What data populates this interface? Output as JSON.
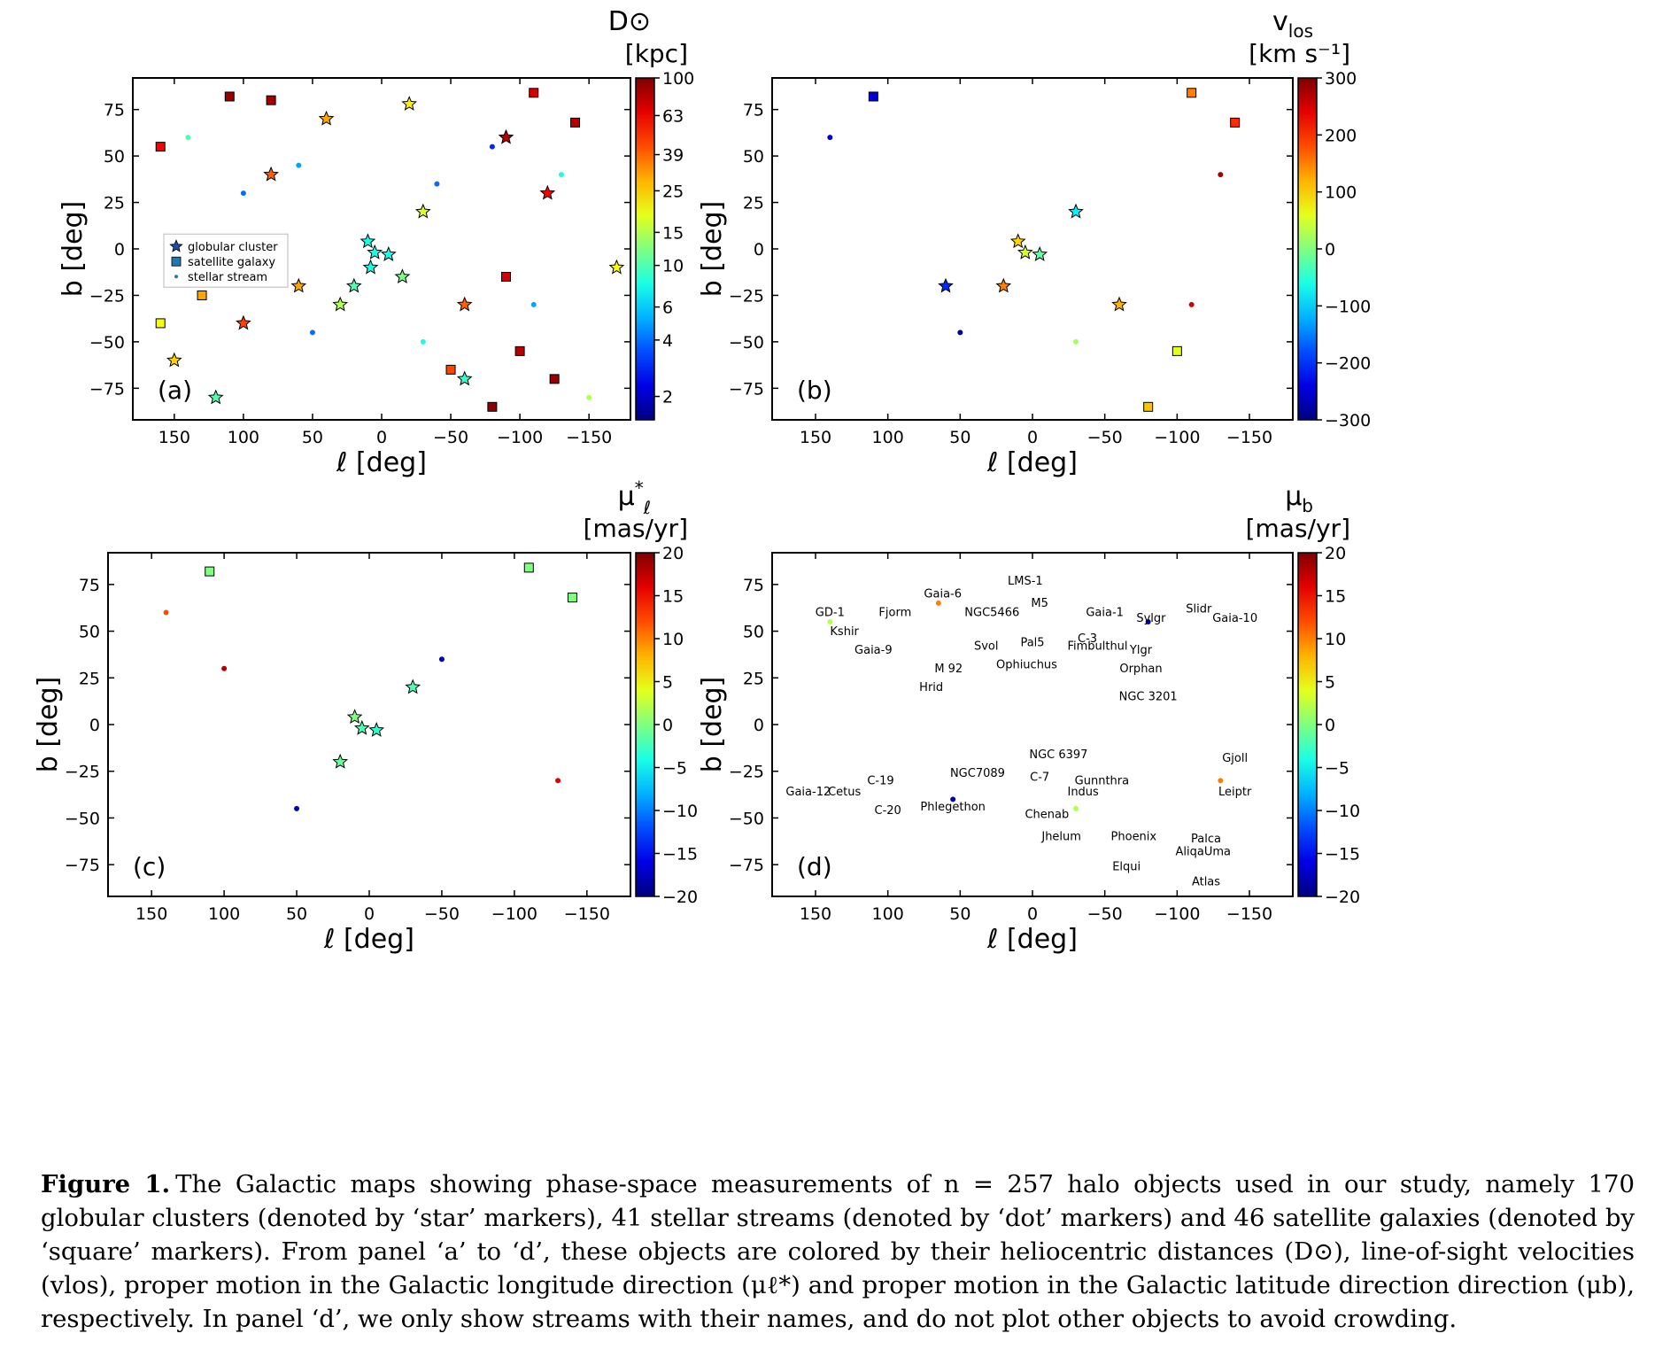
{
  "chart_data": [
    {
      "type": "scatter",
      "panel_label": "(a)",
      "xlabel": "ℓ [deg]",
      "ylabel": "b [deg]",
      "xlim": [
        180,
        -180
      ],
      "ylim": [
        -92,
        92
      ],
      "xticks": [
        150,
        100,
        50,
        0,
        -50,
        -100,
        -150
      ],
      "yticks": [
        75,
        50,
        25,
        0,
        -25,
        -50,
        -75
      ],
      "colorbar": {
        "title_main": "D⊙",
        "title_unit": "[kpc]",
        "scale": "log",
        "range": [
          1.5,
          100
        ],
        "ticks": [
          100,
          63,
          39,
          25,
          15,
          10,
          6,
          4,
          2
        ],
        "colormap": "jet"
      },
      "legend": {
        "placement": "center-left",
        "entries": [
          "globular cluster",
          "satellite galaxy",
          "stellar stream"
        ]
      },
      "series": [
        {
          "name": "globular cluster",
          "marker": "star",
          "sample_points": [
            [
              5,
              -2,
              8
            ],
            [
              10,
              4,
              8
            ],
            [
              -5,
              -3,
              8
            ],
            [
              8,
              -10,
              8
            ],
            [
              20,
              -20,
              10
            ],
            [
              -15,
              -15,
              12
            ],
            [
              30,
              -30,
              15
            ],
            [
              -30,
              20,
              18
            ],
            [
              60,
              -20,
              30
            ],
            [
              -60,
              -30,
              40
            ],
            [
              100,
              -40,
              45
            ],
            [
              -120,
              30,
              60
            ],
            [
              150,
              -60,
              25
            ],
            [
              -170,
              -10,
              20
            ],
            [
              80,
              40,
              40
            ],
            [
              -90,
              60,
              80
            ],
            [
              120,
              -80,
              10
            ],
            [
              40,
              70,
              30
            ],
            [
              -20,
              78,
              22
            ],
            [
              -60,
              -70,
              9
            ]
          ]
        },
        {
          "name": "satellite galaxy",
          "marker": "square",
          "sample_points": [
            [
              110,
              82,
              90
            ],
            [
              80,
              80,
              85
            ],
            [
              -110,
              84,
              70
            ],
            [
              -140,
              68,
              80
            ],
            [
              160,
              55,
              60
            ],
            [
              160,
              -40,
              20
            ],
            [
              -125,
              -70,
              90
            ],
            [
              -100,
              -55,
              80
            ],
            [
              -50,
              -65,
              45
            ],
            [
              130,
              -25,
              30
            ],
            [
              -80,
              -85,
              95
            ],
            [
              -90,
              -15,
              70
            ]
          ]
        },
        {
          "name": "stellar stream",
          "marker": "dot",
          "sample_points": [
            [
              140,
              60,
              10
            ],
            [
              60,
              45,
              5
            ],
            [
              -40,
              35,
              4
            ],
            [
              -80,
              55,
              3
            ],
            [
              -130,
              40,
              8
            ],
            [
              -110,
              -30,
              5
            ],
            [
              50,
              -45,
              4
            ],
            [
              -30,
              -50,
              8
            ],
            [
              100,
              30,
              4
            ],
            [
              -150,
              -80,
              15
            ]
          ]
        }
      ]
    },
    {
      "type": "scatter",
      "panel_label": "(b)",
      "xlabel": "ℓ [deg]",
      "ylabel": "b [deg]",
      "xlim": [
        180,
        -180
      ],
      "ylim": [
        -92,
        92
      ],
      "xticks": [
        150,
        100,
        50,
        0,
        -50,
        -100,
        -150
      ],
      "yticks": [
        75,
        50,
        25,
        0,
        -25,
        -50,
        -75
      ],
      "colorbar": {
        "title_main": "v",
        "title_sub": "los",
        "title_unit": "[km s⁻¹]",
        "range": [
          -300,
          300
        ],
        "ticks": [
          300,
          200,
          100,
          0,
          -100,
          -200,
          -300
        ],
        "colormap": "jet"
      },
      "series": [
        {
          "name": "globular cluster",
          "marker": "star",
          "sample_points": [
            [
              5,
              -2,
              50
            ],
            [
              10,
              4,
              100
            ],
            [
              -5,
              -3,
              -20
            ],
            [
              20,
              -20,
              150
            ],
            [
              -30,
              20,
              -80
            ],
            [
              60,
              -20,
              -200
            ],
            [
              -60,
              -30,
              120
            ]
          ]
        },
        {
          "name": "satellite galaxy",
          "marker": "square",
          "sample_points": [
            [
              110,
              82,
              -250
            ],
            [
              -110,
              84,
              150
            ],
            [
              -140,
              68,
              200
            ],
            [
              -100,
              -55,
              60
            ],
            [
              -80,
              -85,
              110
            ]
          ]
        },
        {
          "name": "stellar stream",
          "marker": "dot",
          "sample_points": [
            [
              140,
              60,
              -250
            ],
            [
              -110,
              -30,
              250
            ],
            [
              -130,
              40,
              280
            ],
            [
              50,
              -45,
              -280
            ],
            [
              -30,
              -50,
              20
            ]
          ]
        }
      ]
    },
    {
      "type": "scatter",
      "panel_label": "(c)",
      "xlabel": "ℓ [deg]",
      "ylabel": "b [deg]",
      "xlim": [
        180,
        -180
      ],
      "ylim": [
        -92,
        92
      ],
      "xticks": [
        150,
        100,
        50,
        0,
        -50,
        -100,
        -150
      ],
      "yticks": [
        75,
        50,
        25,
        0,
        -25,
        -50,
        -75
      ],
      "colorbar": {
        "title_main": "μ",
        "title_sub": "ℓ",
        "title_sup": "*",
        "title_unit": "[mas/yr]",
        "range": [
          -20,
          20
        ],
        "ticks": [
          20,
          15,
          10,
          5,
          0,
          -5,
          -10,
          -15,
          -20
        ],
        "colormap": "jet"
      },
      "series": [
        {
          "name": "globular cluster",
          "marker": "star",
          "sample_points": [
            [
              5,
              -2,
              -2
            ],
            [
              10,
              4,
              0
            ],
            [
              -5,
              -3,
              -3
            ],
            [
              20,
              -20,
              -1
            ],
            [
              -30,
              20,
              -2
            ]
          ]
        },
        {
          "name": "satellite galaxy",
          "marker": "square",
          "sample_points": [
            [
              110,
              82,
              0
            ],
            [
              -110,
              84,
              0
            ],
            [
              -140,
              68,
              0
            ]
          ]
        },
        {
          "name": "stellar stream",
          "marker": "dot",
          "sample_points": [
            [
              140,
              60,
              12
            ],
            [
              100,
              30,
              18
            ],
            [
              -130,
              -30,
              16
            ],
            [
              50,
              -45,
              -18
            ],
            [
              -50,
              35,
              -18
            ]
          ]
        }
      ]
    },
    {
      "type": "scatter",
      "panel_label": "(d)",
      "xlabel": "ℓ [deg]",
      "ylabel": "b [deg]",
      "xlim": [
        180,
        -180
      ],
      "ylim": [
        -92,
        92
      ],
      "xticks": [
        150,
        100,
        50,
        0,
        -50,
        -100,
        -150
      ],
      "yticks": [
        75,
        50,
        25,
        0,
        -25,
        -50,
        -75
      ],
      "colorbar": {
        "title_main": "μ",
        "title_sub": "b",
        "title_unit": "[mas/yr]",
        "range": [
          -20,
          20
        ],
        "ticks": [
          20,
          15,
          10,
          5,
          0,
          -5,
          -10,
          -15,
          -20
        ],
        "colormap": "jet"
      },
      "annotations": [
        {
          "text": "GD-1",
          "xy": [
            140,
            58
          ]
        },
        {
          "text": "Fjorm",
          "xy": [
            95,
            58
          ]
        },
        {
          "text": "Gaia-6",
          "xy": [
            62,
            68
          ]
        },
        {
          "text": "NGC5466",
          "xy": [
            28,
            58
          ]
        },
        {
          "text": "LMS-1",
          "xy": [
            5,
            75
          ]
        },
        {
          "text": "Gaia-1",
          "xy": [
            -50,
            58
          ]
        },
        {
          "text": "Sylgr",
          "xy": [
            -82,
            55
          ]
        },
        {
          "text": "Slidr",
          "xy": [
            -115,
            60
          ]
        },
        {
          "text": "Gaia-10",
          "xy": [
            -140,
            55
          ]
        },
        {
          "text": "Kshir",
          "xy": [
            130,
            48
          ]
        },
        {
          "text": "M5",
          "xy": [
            -5,
            63
          ]
        },
        {
          "text": "C-3",
          "xy": [
            -38,
            44
          ]
        },
        {
          "text": "Svol",
          "xy": [
            32,
            40
          ]
        },
        {
          "text": "Gaia-9",
          "xy": [
            110,
            38
          ]
        },
        {
          "text": "Pal5",
          "xy": [
            0,
            42
          ]
        },
        {
          "text": "M 92",
          "xy": [
            58,
            28
          ]
        },
        {
          "text": "Ophiuchus",
          "xy": [
            4,
            30
          ]
        },
        {
          "text": "Fimbulthul",
          "xy": [
            -45,
            40
          ]
        },
        {
          "text": "Ylgr",
          "xy": [
            -75,
            38
          ]
        },
        {
          "text": "Orphan",
          "xy": [
            -75,
            28
          ]
        },
        {
          "text": "Hrid",
          "xy": [
            70,
            18
          ]
        },
        {
          "text": "NGC 3201",
          "xy": [
            -80,
            13
          ]
        },
        {
          "text": "NGC 6397",
          "xy": [
            -18,
            -18
          ]
        },
        {
          "text": "Gjoll",
          "xy": [
            -140,
            -20
          ]
        },
        {
          "text": "Gaia-12",
          "xy": [
            155,
            -38
          ]
        },
        {
          "text": "Cetus",
          "xy": [
            130,
            -38
          ]
        },
        {
          "text": "NGC7089",
          "xy": [
            38,
            -28
          ]
        },
        {
          "text": "C-7",
          "xy": [
            -5,
            -30
          ]
        },
        {
          "text": "C-19",
          "xy": [
            105,
            -32
          ]
        },
        {
          "text": "Gunnthra",
          "xy": [
            -48,
            -32
          ]
        },
        {
          "text": "Indus",
          "xy": [
            -35,
            -38
          ]
        },
        {
          "text": "C-20",
          "xy": [
            100,
            -48
          ]
        },
        {
          "text": "Leiptr",
          "xy": [
            -140,
            -38
          ]
        },
        {
          "text": "Phlegethon",
          "xy": [
            55,
            -46
          ]
        },
        {
          "text": "Chenab",
          "xy": [
            -10,
            -50
          ]
        },
        {
          "text": "Phoenix",
          "xy": [
            -70,
            -62
          ]
        },
        {
          "text": "Palca",
          "xy": [
            -120,
            -63
          ]
        },
        {
          "text": "AliqaUma",
          "xy": [
            -118,
            -70
          ]
        },
        {
          "text": "Jhelum",
          "xy": [
            -20,
            -62
          ]
        },
        {
          "text": "Elqui",
          "xy": [
            -65,
            -78
          ]
        },
        {
          "text": "Atlas",
          "xy": [
            -120,
            -86
          ]
        }
      ],
      "series": [
        {
          "name": "stellar stream",
          "marker": "dot",
          "sample_points": [
            [
              140,
              55,
              2
            ],
            [
              65,
              65,
              10
            ],
            [
              -80,
              55,
              -18
            ],
            [
              -30,
              -45,
              2
            ],
            [
              -130,
              -30,
              10
            ],
            [
              55,
              -40,
              -18
            ]
          ]
        }
      ]
    }
  ],
  "caption": {
    "label": "Figure 1.",
    "text": "The Galactic maps showing phase-space measurements of n = 257 halo objects used in our study, namely 170 globular clusters (denoted by ‘star’ markers), 41 stellar streams (denoted by ‘dot’ markers) and 46 satellite galaxies (denoted by ‘square’ markers). From panel ‘a’ to ‘d’, these objects are colored by their heliocentric distances (D⊙), line-of-sight velocities (vlos), proper motion in the Galactic longitude direction (μℓ*) and proper motion in the Galactic latitude direction direction (μb), respectively. In panel ‘d’, we only show streams with their names, and do not plot other objects to avoid crowding."
  }
}
